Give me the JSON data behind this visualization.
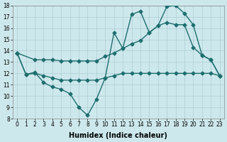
{
  "xlabel": "Humidex (Indice chaleur)",
  "bg_color": "#cde8ec",
  "grid_color": "#aecdd4",
  "line_color": "#1e6e6e",
  "xlim": [
    -0.5,
    23.5
  ],
  "ylim": [
    8,
    18
  ],
  "yticks": [
    8,
    9,
    10,
    11,
    12,
    13,
    14,
    15,
    16,
    17,
    18
  ],
  "xticks": [
    0,
    1,
    2,
    3,
    4,
    5,
    6,
    7,
    8,
    9,
    10,
    11,
    12,
    13,
    14,
    15,
    16,
    17,
    18,
    19,
    20,
    21,
    22,
    23
  ],
  "line1_x": [
    0,
    1,
    2,
    3,
    4,
    5,
    6,
    7,
    8,
    9,
    10,
    11,
    12,
    13,
    14,
    15,
    16,
    17,
    18,
    19,
    20,
    21,
    22,
    23
  ],
  "line1_y": [
    13.8,
    11.9,
    12.0,
    11.8,
    11.6,
    11.4,
    11.4,
    11.4,
    11.4,
    11.4,
    11.6,
    11.8,
    12.0,
    12.0,
    12.0,
    12.0,
    12.0,
    12.0,
    12.0,
    12.0,
    12.0,
    12.0,
    12.0,
    11.8
  ],
  "line2_x": [
    0,
    2,
    3,
    4,
    5,
    6,
    7,
    8,
    9,
    10,
    11,
    12,
    13,
    14,
    15,
    16,
    17,
    18,
    19,
    20,
    21,
    22,
    23
  ],
  "line2_y": [
    13.8,
    13.2,
    13.2,
    13.2,
    13.1,
    13.1,
    13.1,
    13.1,
    13.1,
    13.5,
    13.8,
    14.2,
    14.6,
    14.9,
    15.6,
    16.2,
    16.5,
    16.3,
    16.3,
    14.3,
    13.6,
    13.2,
    11.8
  ],
  "line3_x": [
    0,
    1,
    2,
    3,
    4,
    5,
    6,
    7,
    8,
    9,
    10,
    11,
    12,
    13,
    14,
    15,
    16,
    17,
    18,
    19,
    20,
    21,
    22,
    23
  ],
  "line3_y": [
    13.8,
    11.9,
    12.1,
    11.2,
    10.8,
    10.6,
    10.2,
    9.0,
    8.3,
    9.7,
    11.6,
    15.6,
    14.2,
    17.2,
    17.5,
    15.6,
    16.2,
    17.9,
    18.0,
    17.3,
    16.3,
    13.6,
    13.2,
    11.8
  ],
  "marker": "D",
  "markersize": 2.5,
  "linewidth": 1.0,
  "tick_fontsize": 5.5,
  "xlabel_fontsize": 7
}
